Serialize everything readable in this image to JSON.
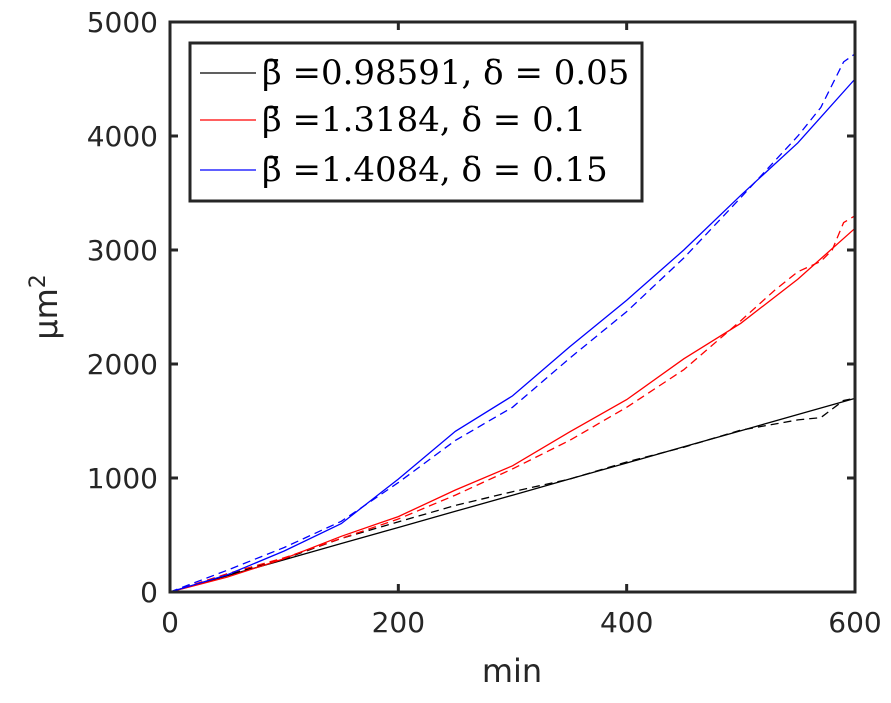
{
  "chart_data": {
    "type": "line",
    "xlabel": "min",
    "ylabel": "μm",
    "ylabel_superscript": "2",
    "xlim": [
      0,
      600
    ],
    "ylim": [
      0,
      5000
    ],
    "xticks": [
      0,
      200,
      400,
      600
    ],
    "yticks": [
      0,
      1000,
      2000,
      3000,
      4000,
      5000
    ],
    "xtick_labels": [
      "0",
      "200",
      "400",
      "600"
    ],
    "ytick_labels": [
      "0",
      "1000",
      "2000",
      "3000",
      "4000",
      "5000"
    ],
    "grid": false,
    "legend_position": "top-left",
    "series": [
      {
        "name": "β̄ =0.98591, δ = 0.05",
        "color": "#000000",
        "fit": {
          "x": [
            0,
            50,
            100,
            150,
            200,
            250,
            300,
            350,
            400,
            450,
            500,
            550,
            600
          ],
          "y": [
            0,
            142,
            283,
            425,
            566,
            708,
            849,
            991,
            1132,
            1274,
            1415,
            1557,
            1698
          ]
        },
        "data": {
          "x": [
            0,
            50,
            100,
            150,
            200,
            250,
            300,
            350,
            400,
            450,
            500,
            550,
            570,
            590,
            600
          ],
          "y": [
            0,
            150,
            290,
            470,
            615,
            760,
            880,
            990,
            1140,
            1270,
            1420,
            1510,
            1530,
            1680,
            1700
          ]
        }
      },
      {
        "name": "β̄ =1.3184, δ = 0.1",
        "color": "#ff0000",
        "fit": {
          "x": [
            0,
            50,
            100,
            150,
            200,
            250,
            300,
            350,
            400,
            450,
            500,
            550,
            600
          ],
          "y": [
            0,
            131,
            293,
            489,
            661,
            895,
            1107,
            1404,
            1688,
            2046,
            2357,
            2745,
            3190
          ]
        },
        "data": {
          "x": [
            0,
            50,
            100,
            150,
            200,
            250,
            300,
            350,
            400,
            450,
            500,
            530,
            550,
            570,
            580,
            590,
            600
          ],
          "y": [
            0,
            160,
            300,
            470,
            640,
            850,
            1080,
            1330,
            1620,
            1950,
            2380,
            2650,
            2810,
            2900,
            3000,
            3240,
            3300
          ]
        }
      },
      {
        "name": "β̄ =1.4084, δ = 0.15",
        "color": "#0000ff",
        "fit": {
          "x": [
            0,
            50,
            100,
            150,
            200,
            250,
            300,
            350,
            400,
            450,
            500,
            550,
            600
          ],
          "y": [
            0,
            150,
            360,
            600,
            990,
            1410,
            1720,
            2150,
            2560,
            3000,
            3480,
            3940,
            4500
          ]
        },
        "data": {
          "x": [
            0,
            50,
            100,
            150,
            200,
            250,
            300,
            350,
            400,
            450,
            500,
            550,
            570,
            590,
            600
          ],
          "y": [
            0,
            190,
            390,
            620,
            960,
            1330,
            1620,
            2050,
            2460,
            2930,
            3460,
            4000,
            4250,
            4650,
            4720
          ]
        }
      }
    ]
  }
}
